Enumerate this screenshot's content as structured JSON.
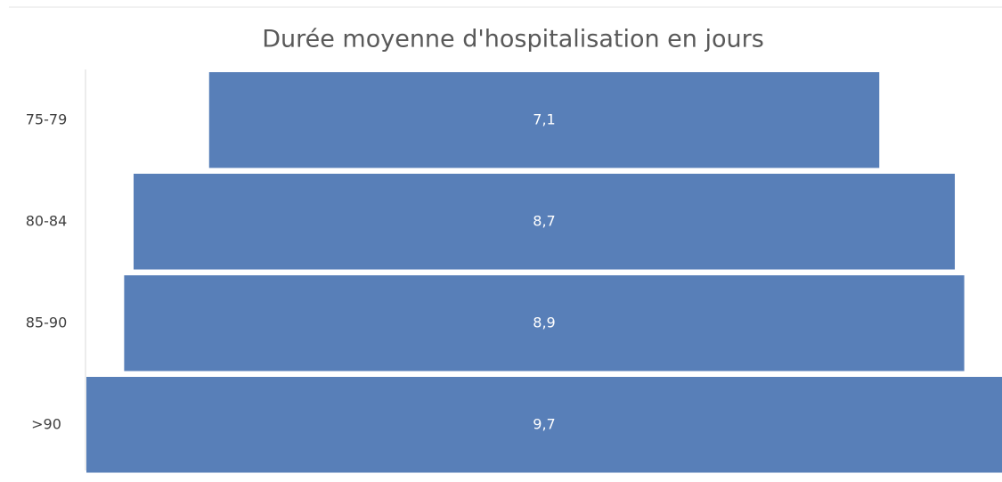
{
  "chart_data": {
    "type": "funnel",
    "title": "Durée moyenne d'hospitalisation en jours",
    "categories": [
      "75-79",
      "80-84",
      "85-90",
      ">90"
    ],
    "values": [
      7.1,
      8.7,
      8.9,
      9.7
    ],
    "value_labels": [
      "7,1",
      "8,7",
      "8,9",
      "9,7"
    ],
    "color": "#587fb8"
  }
}
